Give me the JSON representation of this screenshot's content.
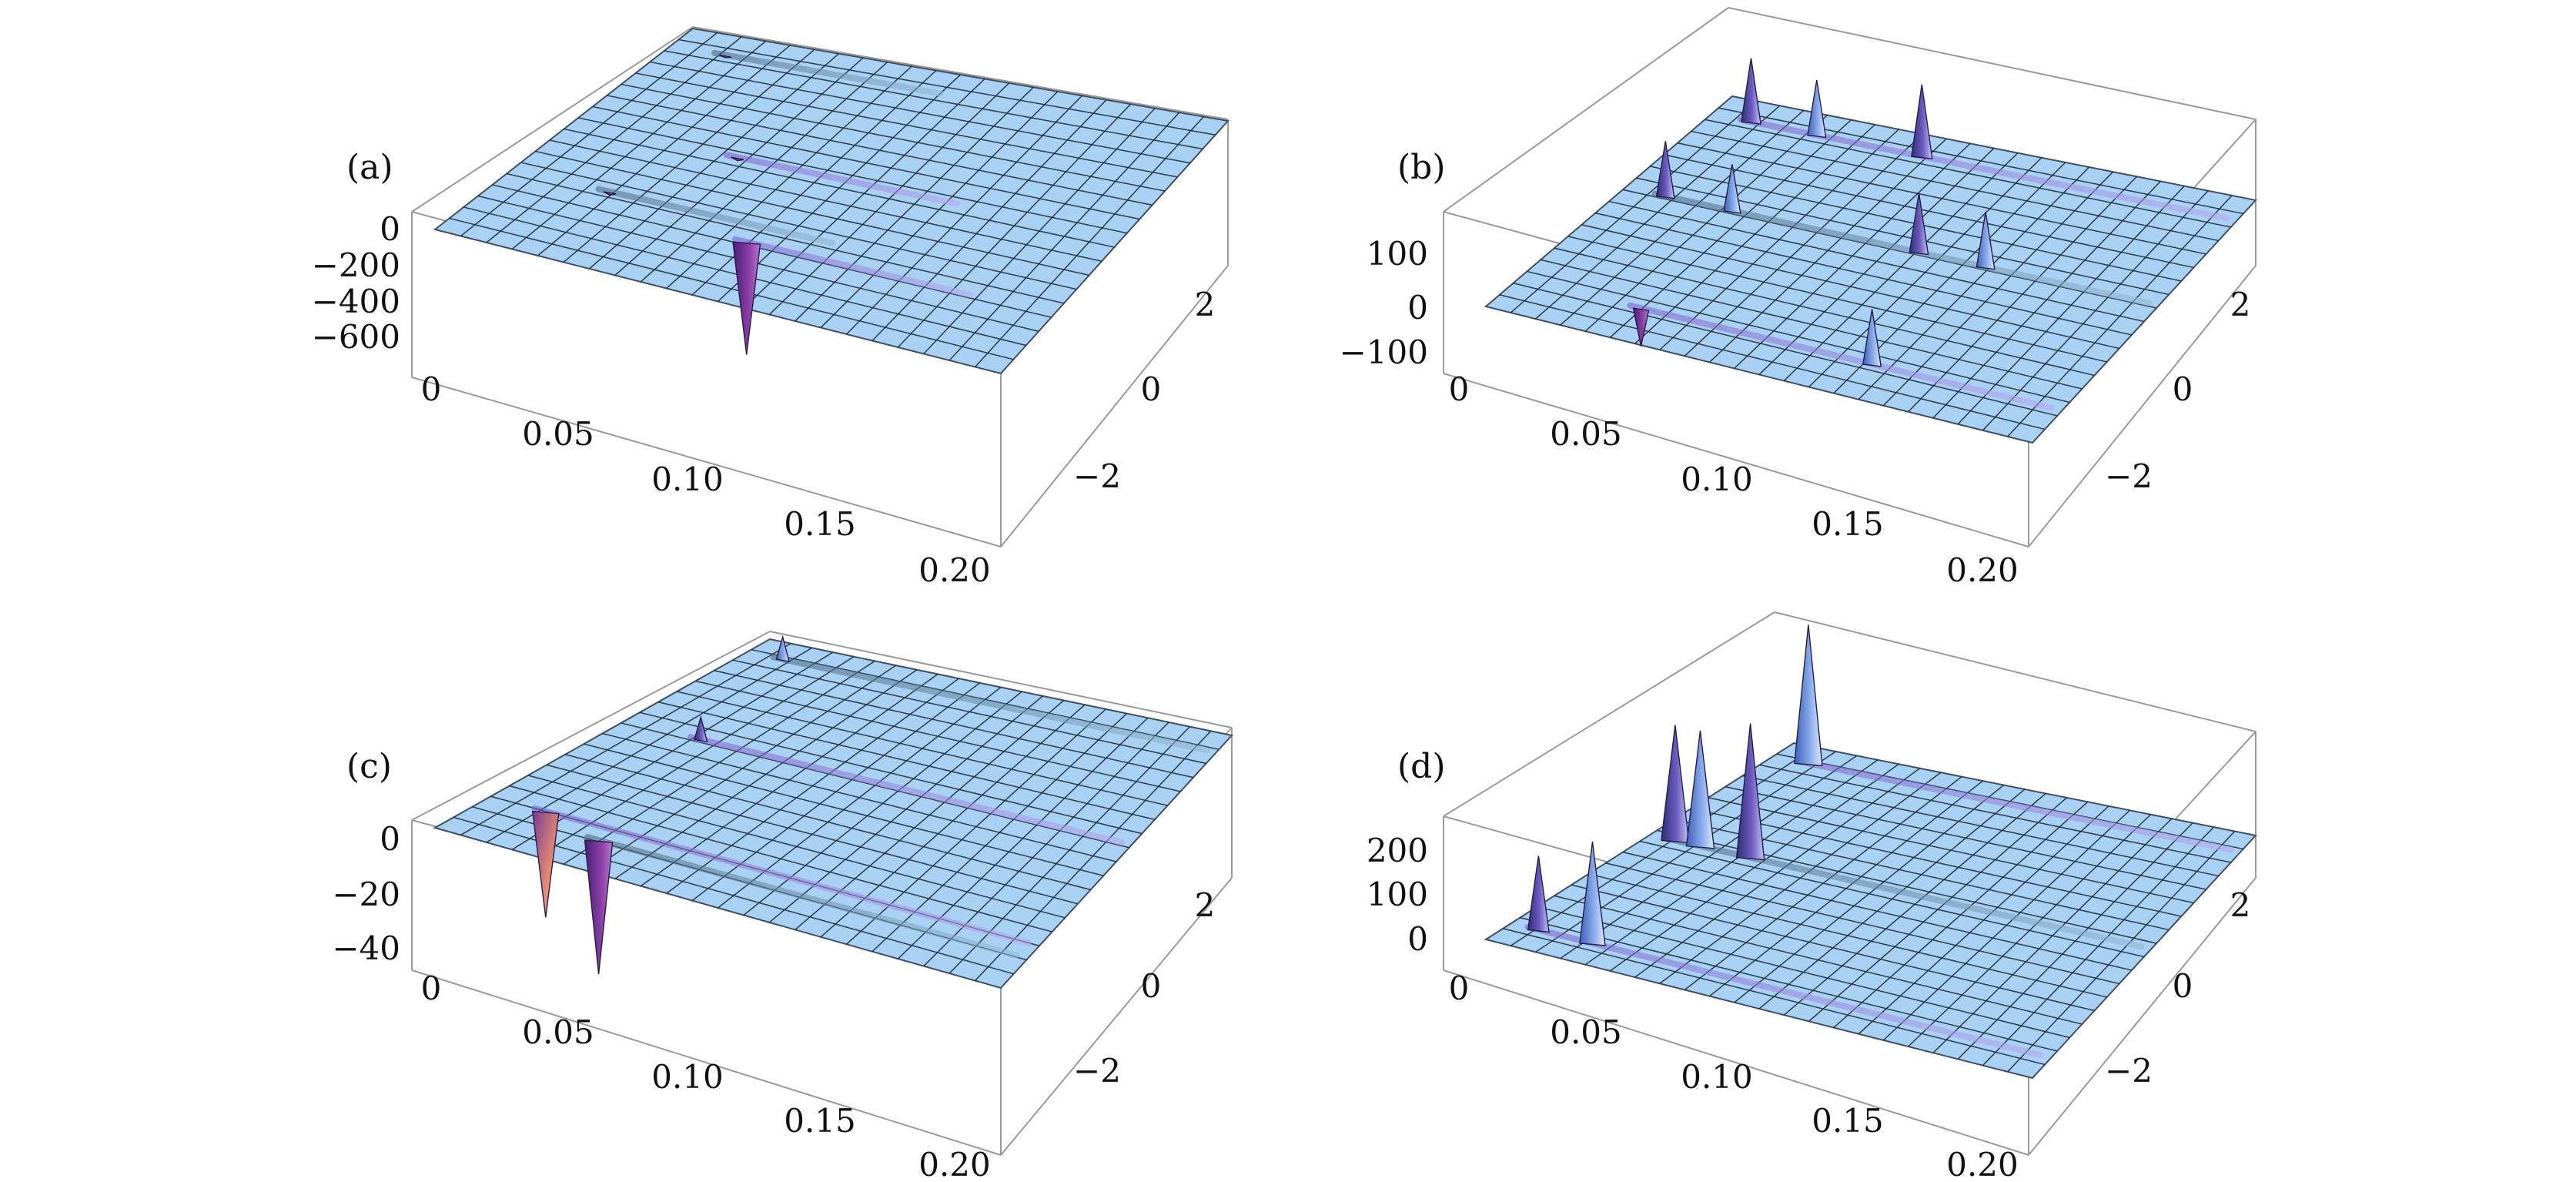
{
  "colors": {
    "surface": "#a9d1f3",
    "mesh": "#1c2a36",
    "box": "#9a9a9a",
    "spike_dark": "#4d3a8f",
    "spike_light": "#6d86d8",
    "spike_neg": "#7a2a8e",
    "spike_warm": "#e8876b"
  },
  "chart_data": [
    {
      "panel": "(a)",
      "type": "surface3d",
      "x_ticks": [
        "0",
        "0.05",
        "0.10",
        "0.15",
        "0.20"
      ],
      "y_ticks": [
        "2",
        "0",
        "−2"
      ],
      "z_ticks": [
        "0",
        "−200",
        "−400",
        "−600"
      ],
      "xlim": [
        0,
        0.2
      ],
      "ylim": [
        -3,
        3
      ],
      "zlim": [
        -700,
        50
      ],
      "features": [
        {
          "x": 0.09,
          "y": -1.6,
          "z": -650
        },
        {
          "x": 0.035,
          "y": -1.2,
          "z": -20
        },
        {
          "x": 0.06,
          "y": 0.2,
          "z": -20
        },
        {
          "x": 0.02,
          "y": 2.5,
          "z": -15
        }
      ]
    },
    {
      "panel": "(b)",
      "type": "surface3d",
      "x_ticks": [
        "0",
        "0.05",
        "0.10",
        "0.15",
        "0.20"
      ],
      "y_ticks": [
        "2",
        "0",
        "−2"
      ],
      "z_ticks": [
        "100",
        "0",
        "−100"
      ],
      "xlim": [
        0,
        0.2
      ],
      "ylim": [
        -3,
        3
      ],
      "zlim": [
        -120,
        200
      ],
      "features": [
        {
          "x": 0.045,
          "y": -2.2,
          "z": -90
        },
        {
          "x": 0.13,
          "y": -2.2,
          "z": 130
        },
        {
          "x": 0.015,
          "y": 0.4,
          "z": 130
        },
        {
          "x": 0.04,
          "y": 0.4,
          "z": 110
        },
        {
          "x": 0.11,
          "y": 0.4,
          "z": 140
        },
        {
          "x": 0.135,
          "y": 0.4,
          "z": 130
        },
        {
          "x": 0.015,
          "y": 2.5,
          "z": 150
        },
        {
          "x": 0.04,
          "y": 2.5,
          "z": 130
        },
        {
          "x": 0.08,
          "y": 2.5,
          "z": 170
        }
      ]
    },
    {
      "panel": "(c)",
      "type": "surface3d",
      "x_ticks": [
        "0",
        "0.05",
        "0.10",
        "0.15",
        "0.20"
      ],
      "y_ticks": [
        "2",
        "0",
        "−2"
      ],
      "z_ticks": [
        "0",
        "−20",
        "−40"
      ],
      "xlim": [
        0,
        0.2
      ],
      "ylim": [
        -3,
        3
      ],
      "zlim": [
        -48,
        8
      ],
      "features": [
        {
          "x": 0.02,
          "y": -2.0,
          "z": -38
        },
        {
          "x": 0.045,
          "y": -2.3,
          "z": -48
        },
        {
          "x": 0.03,
          "y": 0.4,
          "z": 8
        },
        {
          "x": 0.015,
          "y": 2.6,
          "z": 8
        }
      ]
    },
    {
      "panel": "(d)",
      "type": "surface3d",
      "x_ticks": [
        "0",
        "0.05",
        "0.10",
        "0.15",
        "0.20"
      ],
      "y_ticks": [
        "2",
        "0",
        "−2"
      ],
      "z_ticks": [
        "200",
        "100",
        "0"
      ],
      "xlim": [
        0,
        0.2
      ],
      "ylim": [
        -3,
        3
      ],
      "zlim": [
        -20,
        300
      ],
      "features": [
        {
          "x": 0.01,
          "y": -2.5,
          "z": 160
        },
        {
          "x": 0.03,
          "y": -2.5,
          "z": 220
        },
        {
          "x": 0.01,
          "y": 0.2,
          "z": 250
        },
        {
          "x": 0.02,
          "y": 0.2,
          "z": 250
        },
        {
          "x": 0.04,
          "y": 0.2,
          "z": 290
        },
        {
          "x": 0.015,
          "y": 2.6,
          "z": 300
        }
      ]
    }
  ]
}
